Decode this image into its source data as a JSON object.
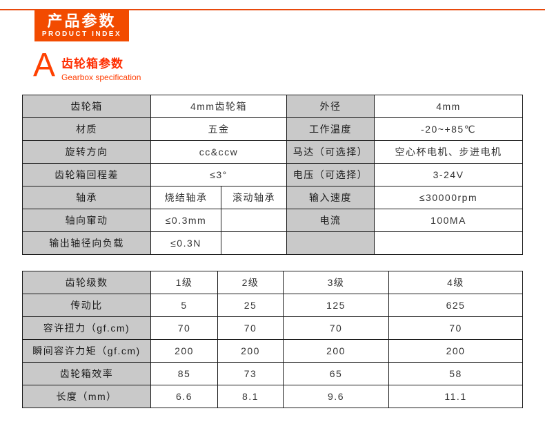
{
  "page": {
    "header": {
      "title_cn": "产品参数",
      "title_en": "PRODUCT  INDEX"
    },
    "section": {
      "letter": "A",
      "title_cn": "齿轮箱参数",
      "title_en": "Gearbox specification"
    },
    "colors": {
      "accent_orange": "#f24b00",
      "line_orange": "#e8490c",
      "section_red": "#ff2d00",
      "label_cell_gray": "#c9c9c9",
      "table_border": "#1a1a1a"
    }
  },
  "gearbox_table": {
    "rows": {
      "r1": {
        "label": "齿轮箱",
        "value": "4mm齿轮箱",
        "label2": "外径",
        "value2": "4mm"
      },
      "r2": {
        "label": "材质",
        "value": "五金",
        "label2": "工作温度",
        "value2": "-20~+85℃"
      },
      "r3": {
        "label": "旋转方向",
        "value": "cc&ccw",
        "label2": "马达（可选择）",
        "value2": "空心杯电机、步进电机"
      },
      "r4": {
        "label": "齿轮箱回程差",
        "value": "≤3°",
        "label2": "电压（可选择）",
        "value2": "3-24V"
      },
      "r5": {
        "label": "轴承",
        "value_a": "烧结轴承",
        "value_b": "滚动轴承",
        "label2": "输入速度",
        "value2": "≤30000rpm"
      },
      "r6": {
        "label": "轴向窜动",
        "value_a": "≤0.3mm",
        "value_b": "",
        "label2": "电流",
        "value2": "100MA"
      },
      "r7": {
        "label": "输出轴径向负载",
        "value_a": "≤0.3N",
        "value_b": "",
        "label2": "",
        "value2": ""
      }
    }
  },
  "stage_table": {
    "header": {
      "label": "齿轮级数",
      "c1": "1级",
      "c2": "2级",
      "c3": "3级",
      "c4": "4级"
    },
    "rows": [
      {
        "label": "传动比",
        "c1": "5",
        "c2": "25",
        "c3": "125",
        "c4": "625"
      },
      {
        "label": "容许扭力（gf.cm)",
        "c1": "70",
        "c2": "70",
        "c3": "70",
        "c4": "70"
      },
      {
        "label": "瞬间容许力矩（gf.cm)",
        "c1": "200",
        "c2": "200",
        "c3": "200",
        "c4": "200"
      },
      {
        "label": "齿轮箱效率",
        "c1": "85",
        "c2": "73",
        "c3": "65",
        "c4": "58"
      },
      {
        "label": "长度（mm）",
        "c1": "6.6",
        "c2": "8.1",
        "c3": "9.6",
        "c4": "11.1"
      }
    ]
  }
}
